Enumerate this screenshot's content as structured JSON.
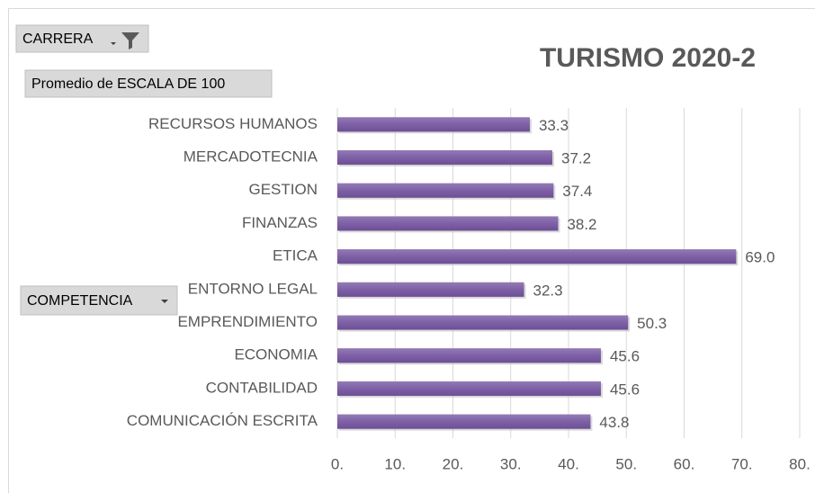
{
  "chart_data": {
    "type": "bar",
    "orientation": "horizontal",
    "title": "TURISMO 2020-2",
    "filter_field": "CARRERA",
    "value_field": "Promedio de ESCALA DE 100",
    "axis_field": "COMPETENCIA",
    "categories": [
      "RECURSOS HUMANOS",
      "MERCADOTECNIA",
      "GESTION",
      "FINANZAS",
      "ETICA",
      "ENTORNO LEGAL",
      "EMPRENDIMIENTO",
      "ECONOMIA",
      "CONTABILIDAD",
      "COMUNICACIÓN ESCRITA"
    ],
    "values": [
      33.3,
      37.2,
      37.4,
      38.2,
      69.0,
      32.3,
      50.3,
      45.6,
      45.6,
      43.8
    ],
    "value_labels": [
      "33.3",
      "37.2",
      "37.4",
      "38.2",
      "69.0",
      "32.3",
      "50.3",
      "45.6",
      "45.6",
      "43.8"
    ],
    "color": "#8064a2",
    "xlim": [
      0,
      80
    ],
    "xticks": [
      {
        "value": 0,
        "label": "0."
      },
      {
        "value": 10,
        "label": "10."
      },
      {
        "value": 20,
        "label": "20."
      },
      {
        "value": 30,
        "label": "30."
      },
      {
        "value": 40,
        "label": "40."
      },
      {
        "value": 50,
        "label": "50."
      },
      {
        "value": 60,
        "label": "60."
      },
      {
        "value": 70,
        "label": "70."
      },
      {
        "value": 80,
        "label": "80."
      }
    ],
    "grid": true
  }
}
